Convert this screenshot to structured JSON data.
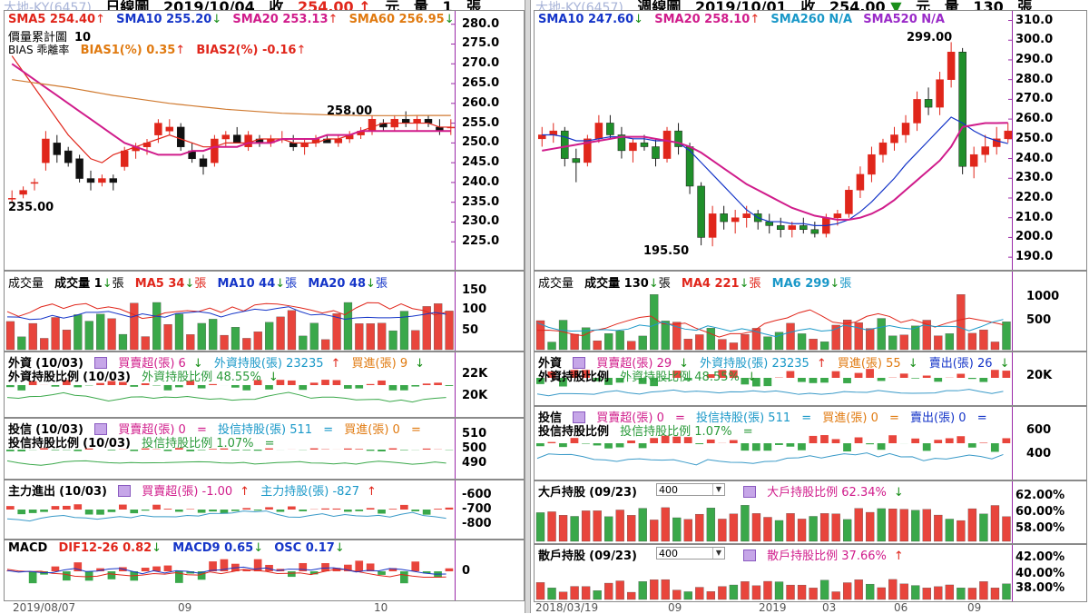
{
  "charts": {
    "daily": {
      "title_ghost": "大地-KY(6457)",
      "title": "日線圖",
      "date": "2019/10/04",
      "close_label": "收",
      "close": "254.00",
      "change_label": "元",
      "volume_label": "量",
      "volume": "1",
      "volume_unit": "張"
    },
    "weekly": {
      "title_ghost": "大地-KY(6457)",
      "title": "週線圖",
      "date": "2019/10/01",
      "close_label": "收",
      "close": "254.00",
      "change_label": "元",
      "volume_label": "量",
      "volume": "130",
      "volume_unit": "張"
    }
  },
  "left": {
    "price": {
      "sma5": "SMA5 254.40",
      "sma10": "SMA10 255.20",
      "sma20": "SMA20 253.13",
      "sma60": "SMA60 256.95",
      "line2a": "價量累計圖",
      "line2b": "10",
      "line3a": "BIAS 乖離率",
      "bias1": "BIAS1(%) 0.35",
      "bias2": "BIAS2(%) -0.16",
      "high_label": "258.00",
      "low_label": "235.00",
      "yticks": [
        "280.0",
        "275.0",
        "270.0",
        "265.0",
        "260.0",
        "255.0",
        "250.0",
        "245.0",
        "240.0",
        "235.0",
        "230.0",
        "225.0"
      ]
    },
    "volume": {
      "title": "成交量",
      "vol": "成交量 1",
      "vol_unit": "張",
      "ma5": "MA5 34",
      "ma10": "MA10 44",
      "ma20": "MA20 48",
      "ma_unit": "張",
      "yticks": [
        "150",
        "100",
        "50"
      ]
    },
    "foreign": {
      "title": "外資",
      "date": "(10/03)",
      "net": "買賣超(張) 6",
      "hold": "外資持股(張) 23235",
      "buy": "買進(張) 9",
      "ratio_title": "外資持股比例",
      "ratio_date": "(10/03)",
      "ratio": "外資持股比例 48.55%",
      "yticks": [
        "22K",
        "20K"
      ]
    },
    "trust": {
      "title": "投信",
      "date": "(10/03)",
      "net": "買賣超(張) 0",
      "hold": "投信持股(張) 511",
      "buy": "買進(張) 0",
      "ratio_title": "投信持股比例",
      "ratio_date": "(10/03)",
      "ratio": "投信持股比例 1.07%",
      "yticks": [
        "510",
        "500",
        "490"
      ]
    },
    "main": {
      "title": "主力進出",
      "date": "(10/03)",
      "net": "買賣超(張) -1.00",
      "hold": "主力持股(張) -827",
      "yticks": [
        "-600",
        "-700",
        "-800"
      ]
    },
    "macd": {
      "title": "MACD",
      "dif": "DIF12-26 0.82",
      "macd9": "MACD9 0.65",
      "osc": "OSC 0.17",
      "yticks": [
        "0"
      ]
    },
    "xlabels": [
      "2019/08/07",
      "09",
      "10"
    ]
  },
  "right": {
    "price": {
      "sma10": "SMA10 247.60",
      "sma20": "SMA20 258.10",
      "sma260": "SMA260 N/A",
      "sma520": "SMA520 N/A",
      "high_label": "299.00",
      "low_label": "195.50",
      "yticks": [
        "310.0",
        "300.0",
        "290.0",
        "280.0",
        "270.0",
        "260.0",
        "250.0",
        "240.0",
        "230.0",
        "220.0",
        "210.0",
        "200.0",
        "190.0"
      ]
    },
    "volume": {
      "title": "成交量",
      "vol": "成交量 130",
      "vol_unit": "張",
      "ma4": "MA4 221",
      "ma6": "MA6 299",
      "ma_unit": "張",
      "yticks": [
        "1000",
        "500"
      ]
    },
    "foreign": {
      "title": "外資",
      "net": "買賣超(張) 29",
      "hold": "外資持股(張) 23235",
      "buy": "買進(張) 55",
      "sell": "賣出(張) 26",
      "ratio_title": "外資持股比例",
      "ratio": "外資持股比例 48.55%",
      "yticks": [
        "20K"
      ]
    },
    "trust": {
      "title": "投信",
      "net": "買賣超(張) 0",
      "hold": "投信持股(張) 511",
      "buy": "買進(張) 0",
      "sell": "賣出(張) 0",
      "ratio_title": "投信持股比例",
      "ratio": "投信持股比例 1.07%",
      "yticks": [
        "600",
        "400"
      ]
    },
    "big": {
      "title": "大戶持股",
      "date": "(09/23)",
      "select": "400",
      "ratio": "大戶持股比例 62.34%",
      "yticks": [
        "62.00%",
        "60.00%",
        "58.00%"
      ]
    },
    "small": {
      "title": "散戶持股",
      "date": "(09/23)",
      "select": "400",
      "ratio": "散戶持股比例 37.66%",
      "yticks": [
        "42.00%",
        "40.00%",
        "38.00%"
      ]
    },
    "xlabels": [
      "2018/03/19",
      "09",
      "2019",
      "03",
      "06",
      "09"
    ]
  },
  "chart_data": [
    {
      "type": "candlestick",
      "title": "日線圖 2019/10/04",
      "ylim": [
        220,
        282
      ],
      "ohlc": [
        [
          236,
          238,
          235,
          236
        ],
        [
          237,
          239,
          236,
          238
        ],
        [
          240,
          241,
          238,
          240
        ],
        [
          245,
          253,
          243,
          251
        ],
        [
          250,
          252,
          245,
          247
        ],
        [
          248,
          249,
          244,
          245
        ],
        [
          246,
          247,
          240,
          241
        ],
        [
          241,
          243,
          238,
          240
        ],
        [
          240,
          242,
          239,
          241
        ],
        [
          241,
          242,
          238,
          240
        ],
        [
          244,
          249,
          243,
          248
        ],
        [
          248,
          250,
          246,
          249
        ],
        [
          249,
          251,
          247,
          250
        ],
        [
          252,
          256,
          250,
          255
        ],
        [
          253,
          256,
          252,
          254
        ],
        [
          254,
          255,
          248,
          249
        ],
        [
          248,
          250,
          245,
          246
        ],
        [
          246,
          247,
          242,
          244
        ],
        [
          245,
          252,
          244,
          251
        ],
        [
          251,
          253,
          249,
          252
        ],
        [
          252,
          254,
          250,
          250
        ],
        [
          249,
          253,
          248,
          252
        ],
        [
          251,
          252,
          249,
          250
        ],
        [
          250,
          252,
          249,
          251
        ],
        [
          251,
          253,
          250,
          251
        ],
        [
          250,
          252,
          248,
          249
        ],
        [
          249,
          251,
          247,
          250
        ],
        [
          250,
          252,
          249,
          251
        ],
        [
          251,
          252,
          250,
          250
        ],
        [
          250,
          252,
          249,
          251
        ],
        [
          251,
          253,
          250,
          252
        ],
        [
          252,
          254,
          251,
          253
        ],
        [
          253,
          257,
          252,
          256
        ],
        [
          255,
          256,
          253,
          254
        ],
        [
          254,
          257,
          253,
          256
        ],
        [
          256,
          258,
          254,
          255
        ],
        [
          255,
          257,
          253,
          256
        ],
        [
          256,
          257,
          254,
          255
        ],
        [
          254,
          256,
          252,
          253
        ],
        [
          254,
          256,
          252,
          254
        ]
      ],
      "series": [
        {
          "name": "SMA5",
          "values": [
            272,
            268,
            264,
            260,
            256,
            252,
            249,
            246,
            245,
            247,
            248,
            249,
            250,
            251,
            252,
            251,
            250,
            249,
            249,
            250,
            250,
            250,
            251,
            251,
            251,
            250,
            250,
            250,
            251,
            251,
            252,
            253,
            254,
            255,
            255,
            255,
            255,
            255,
            254,
            254
          ]
        },
        {
          "name": "SMA20",
          "values": [
            270,
            268,
            266,
            264,
            262,
            260,
            258,
            256,
            254,
            252,
            250,
            249,
            248,
            247,
            247,
            247,
            248,
            248,
            249,
            249,
            249,
            250,
            250,
            250,
            251,
            251,
            251,
            251,
            252,
            252,
            252,
            253,
            253,
            253,
            253,
            253,
            253,
            253,
            253,
            253
          ]
        },
        {
          "name": "SMA60",
          "values": [
            266,
            265.6,
            265.2,
            264.8,
            264.4,
            264,
            263.5,
            263,
            262.5,
            262,
            261.6,
            261.2,
            260.8,
            260.4,
            260,
            259.7,
            259.4,
            259.1,
            258.8,
            258.5,
            258.3,
            258.1,
            257.9,
            257.7,
            257.5,
            257.4,
            257.3,
            257.2,
            257.1,
            257.0,
            257.0,
            256.9,
            256.9,
            256.9,
            256.9,
            256.9,
            256.95,
            256.95,
            256.95,
            256.95
          ]
        }
      ],
      "annotations": [
        "258.00",
        "235.00"
      ]
    },
    {
      "type": "candlestick",
      "title": "週線圖 2019/10/01",
      "ylim": [
        185,
        313
      ],
      "ohlc": [
        [
          250,
          256,
          246,
          252
        ],
        [
          252,
          258,
          248,
          254
        ],
        [
          254,
          256,
          236,
          240
        ],
        [
          240,
          245,
          228,
          238
        ],
        [
          238,
          252,
          236,
          250
        ],
        [
          250,
          262,
          248,
          258
        ],
        [
          258,
          262,
          250,
          252
        ],
        [
          252,
          256,
          240,
          244
        ],
        [
          244,
          250,
          238,
          248
        ],
        [
          248,
          252,
          244,
          246
        ],
        [
          246,
          250,
          236,
          240
        ],
        [
          240,
          256,
          238,
          254
        ],
        [
          254,
          258,
          242,
          246
        ],
        [
          246,
          248,
          222,
          226
        ],
        [
          226,
          228,
          196,
          200
        ],
        [
          200,
          216,
          195.5,
          212
        ],
        [
          212,
          216,
          204,
          208
        ],
        [
          208,
          214,
          202,
          210
        ],
        [
          210,
          216,
          205,
          212
        ],
        [
          212,
          214,
          204,
          208
        ],
        [
          208,
          212,
          202,
          206
        ],
        [
          206,
          210,
          200,
          204
        ],
        [
          204,
          208,
          200,
          206
        ],
        [
          206,
          210,
          202,
          204
        ],
        [
          204,
          208,
          200,
          202
        ],
        [
          202,
          212,
          200,
          210
        ],
        [
          210,
          214,
          206,
          212
        ],
        [
          212,
          226,
          210,
          224
        ],
        [
          224,
          236,
          220,
          232
        ],
        [
          232,
          246,
          228,
          242
        ],
        [
          242,
          250,
          238,
          248
        ],
        [
          248,
          256,
          244,
          252
        ],
        [
          252,
          262,
          248,
          258
        ],
        [
          258,
          274,
          254,
          270
        ],
        [
          270,
          276,
          262,
          266
        ],
        [
          266,
          284,
          262,
          280
        ],
        [
          280,
          299,
          276,
          294
        ],
        [
          294,
          296,
          232,
          236
        ],
        [
          236,
          246,
          230,
          242
        ],
        [
          242,
          252,
          238,
          246
        ],
        [
          246,
          256,
          242,
          250
        ],
        [
          250,
          258,
          248,
          254
        ]
      ],
      "series": [
        {
          "name": "SMA10",
          "values": [
            252,
            252,
            251,
            249,
            249,
            250,
            251,
            251,
            250,
            250,
            249,
            249,
            248,
            244,
            238,
            232,
            226,
            220,
            214,
            210,
            208,
            208,
            207,
            207,
            206,
            206,
            207,
            209,
            213,
            218,
            224,
            230,
            237,
            243,
            249,
            255,
            261,
            258,
            254,
            251,
            249,
            247.6
          ]
        },
        {
          "name": "SMA20",
          "values": [
            244,
            245,
            246,
            247,
            248,
            249,
            250,
            251,
            251,
            251,
            250,
            249,
            248,
            246,
            243,
            239,
            235,
            231,
            227,
            224,
            221,
            218,
            215,
            213,
            211,
            210,
            209,
            209,
            210,
            212,
            215,
            219,
            224,
            229,
            234,
            239,
            246,
            256,
            257,
            258,
            258,
            258.1
          ]
        }
      ],
      "annotations": [
        "299.00",
        "195.50"
      ]
    }
  ]
}
